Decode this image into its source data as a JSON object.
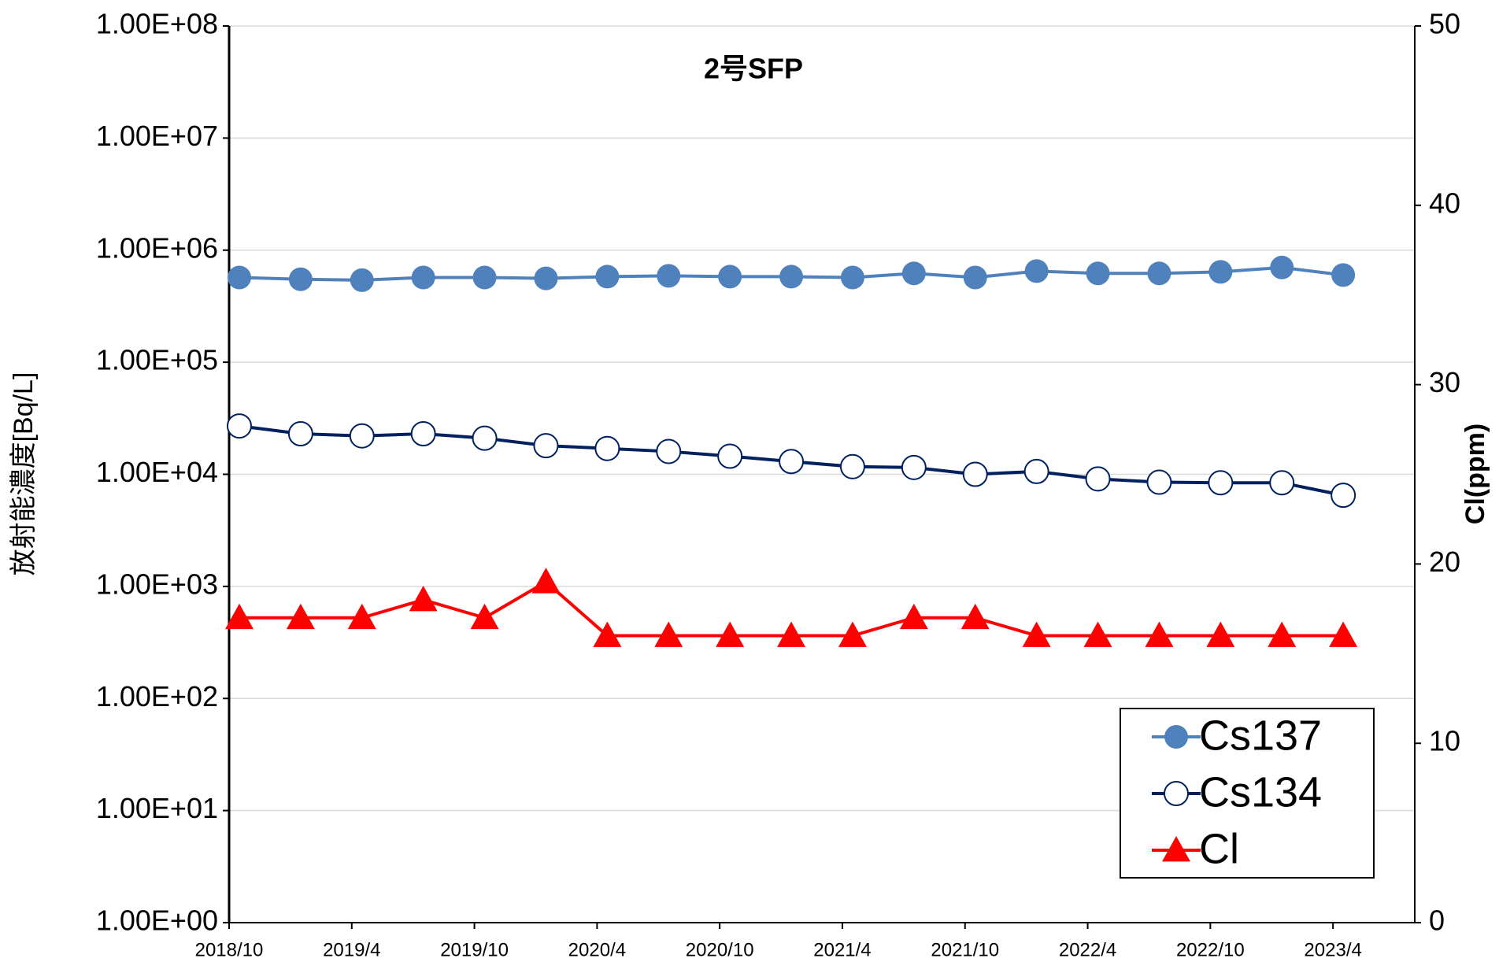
{
  "chart_data": {
    "type": "line",
    "title": "2号SFP",
    "ylabel": "放射能濃度[Bq/L]",
    "y2label": "Cl(ppm)",
    "yscale": "log",
    "x": [
      "2018/10",
      "2019/1",
      "2019/4",
      "2019/7",
      "2019/10",
      "2020/1",
      "2020/4",
      "2020/7",
      "2020/10",
      "2021/1",
      "2021/4",
      "2021/7",
      "2021/10",
      "2022/1",
      "2022/4",
      "2022/7",
      "2022/10",
      "2023/1",
      "2023/4"
    ],
    "xlim": [
      "2018/10",
      "2023/8"
    ],
    "xticks": [
      "2018/10",
      "2019/4",
      "2019/10",
      "2020/4",
      "2020/10",
      "2021/4",
      "2021/10",
      "2022/4",
      "2022/10",
      "2023/4"
    ],
    "ylim": [
      1,
      100000000
    ],
    "yticks": [
      {
        "value": 1,
        "label": "1.00E+00"
      },
      {
        "value": 10,
        "label": "1.00E+01"
      },
      {
        "value": 100,
        "label": "1.00E+02"
      },
      {
        "value": 1000,
        "label": "1.00E+03"
      },
      {
        "value": 10000,
        "label": "1.00E+04"
      },
      {
        "value": 100000,
        "label": "1.00E+05"
      },
      {
        "value": 1000000,
        "label": "1.00E+06"
      },
      {
        "value": 10000000,
        "label": "1.00E+07"
      },
      {
        "value": 100000000,
        "label": "1.00E+08"
      }
    ],
    "y2lim": [
      0,
      50
    ],
    "y2ticks": [
      0,
      10,
      20,
      30,
      40,
      50
    ],
    "grid": true,
    "legend": "lower right",
    "series": [
      {
        "name": "Cs137",
        "color": "#4f81bd",
        "marker": "filled-circle",
        "values": [
          570000,
          550000,
          540000,
          570000,
          570000,
          560000,
          580000,
          590000,
          580000,
          580000,
          570000,
          620000,
          570000,
          650000,
          620000,
          620000,
          640000,
          700000,
          600000
        ]
      },
      {
        "name": "Cs134",
        "color": "#002060",
        "marker": "open-circle",
        "values": [
          27000,
          23000,
          22000,
          23000,
          21000,
          18000,
          17000,
          16000,
          14500,
          13000,
          11700,
          11500,
          10000,
          10600,
          9100,
          8500,
          8400,
          8400,
          6500
        ]
      },
      {
        "name": "Cl",
        "color": "#ff0000",
        "marker": "triangle",
        "axis": "y2",
        "values": [
          17,
          17,
          17,
          18,
          17,
          19,
          16,
          16,
          16,
          16,
          16,
          17,
          17,
          16,
          16,
          16,
          16,
          16,
          16
        ]
      }
    ]
  }
}
